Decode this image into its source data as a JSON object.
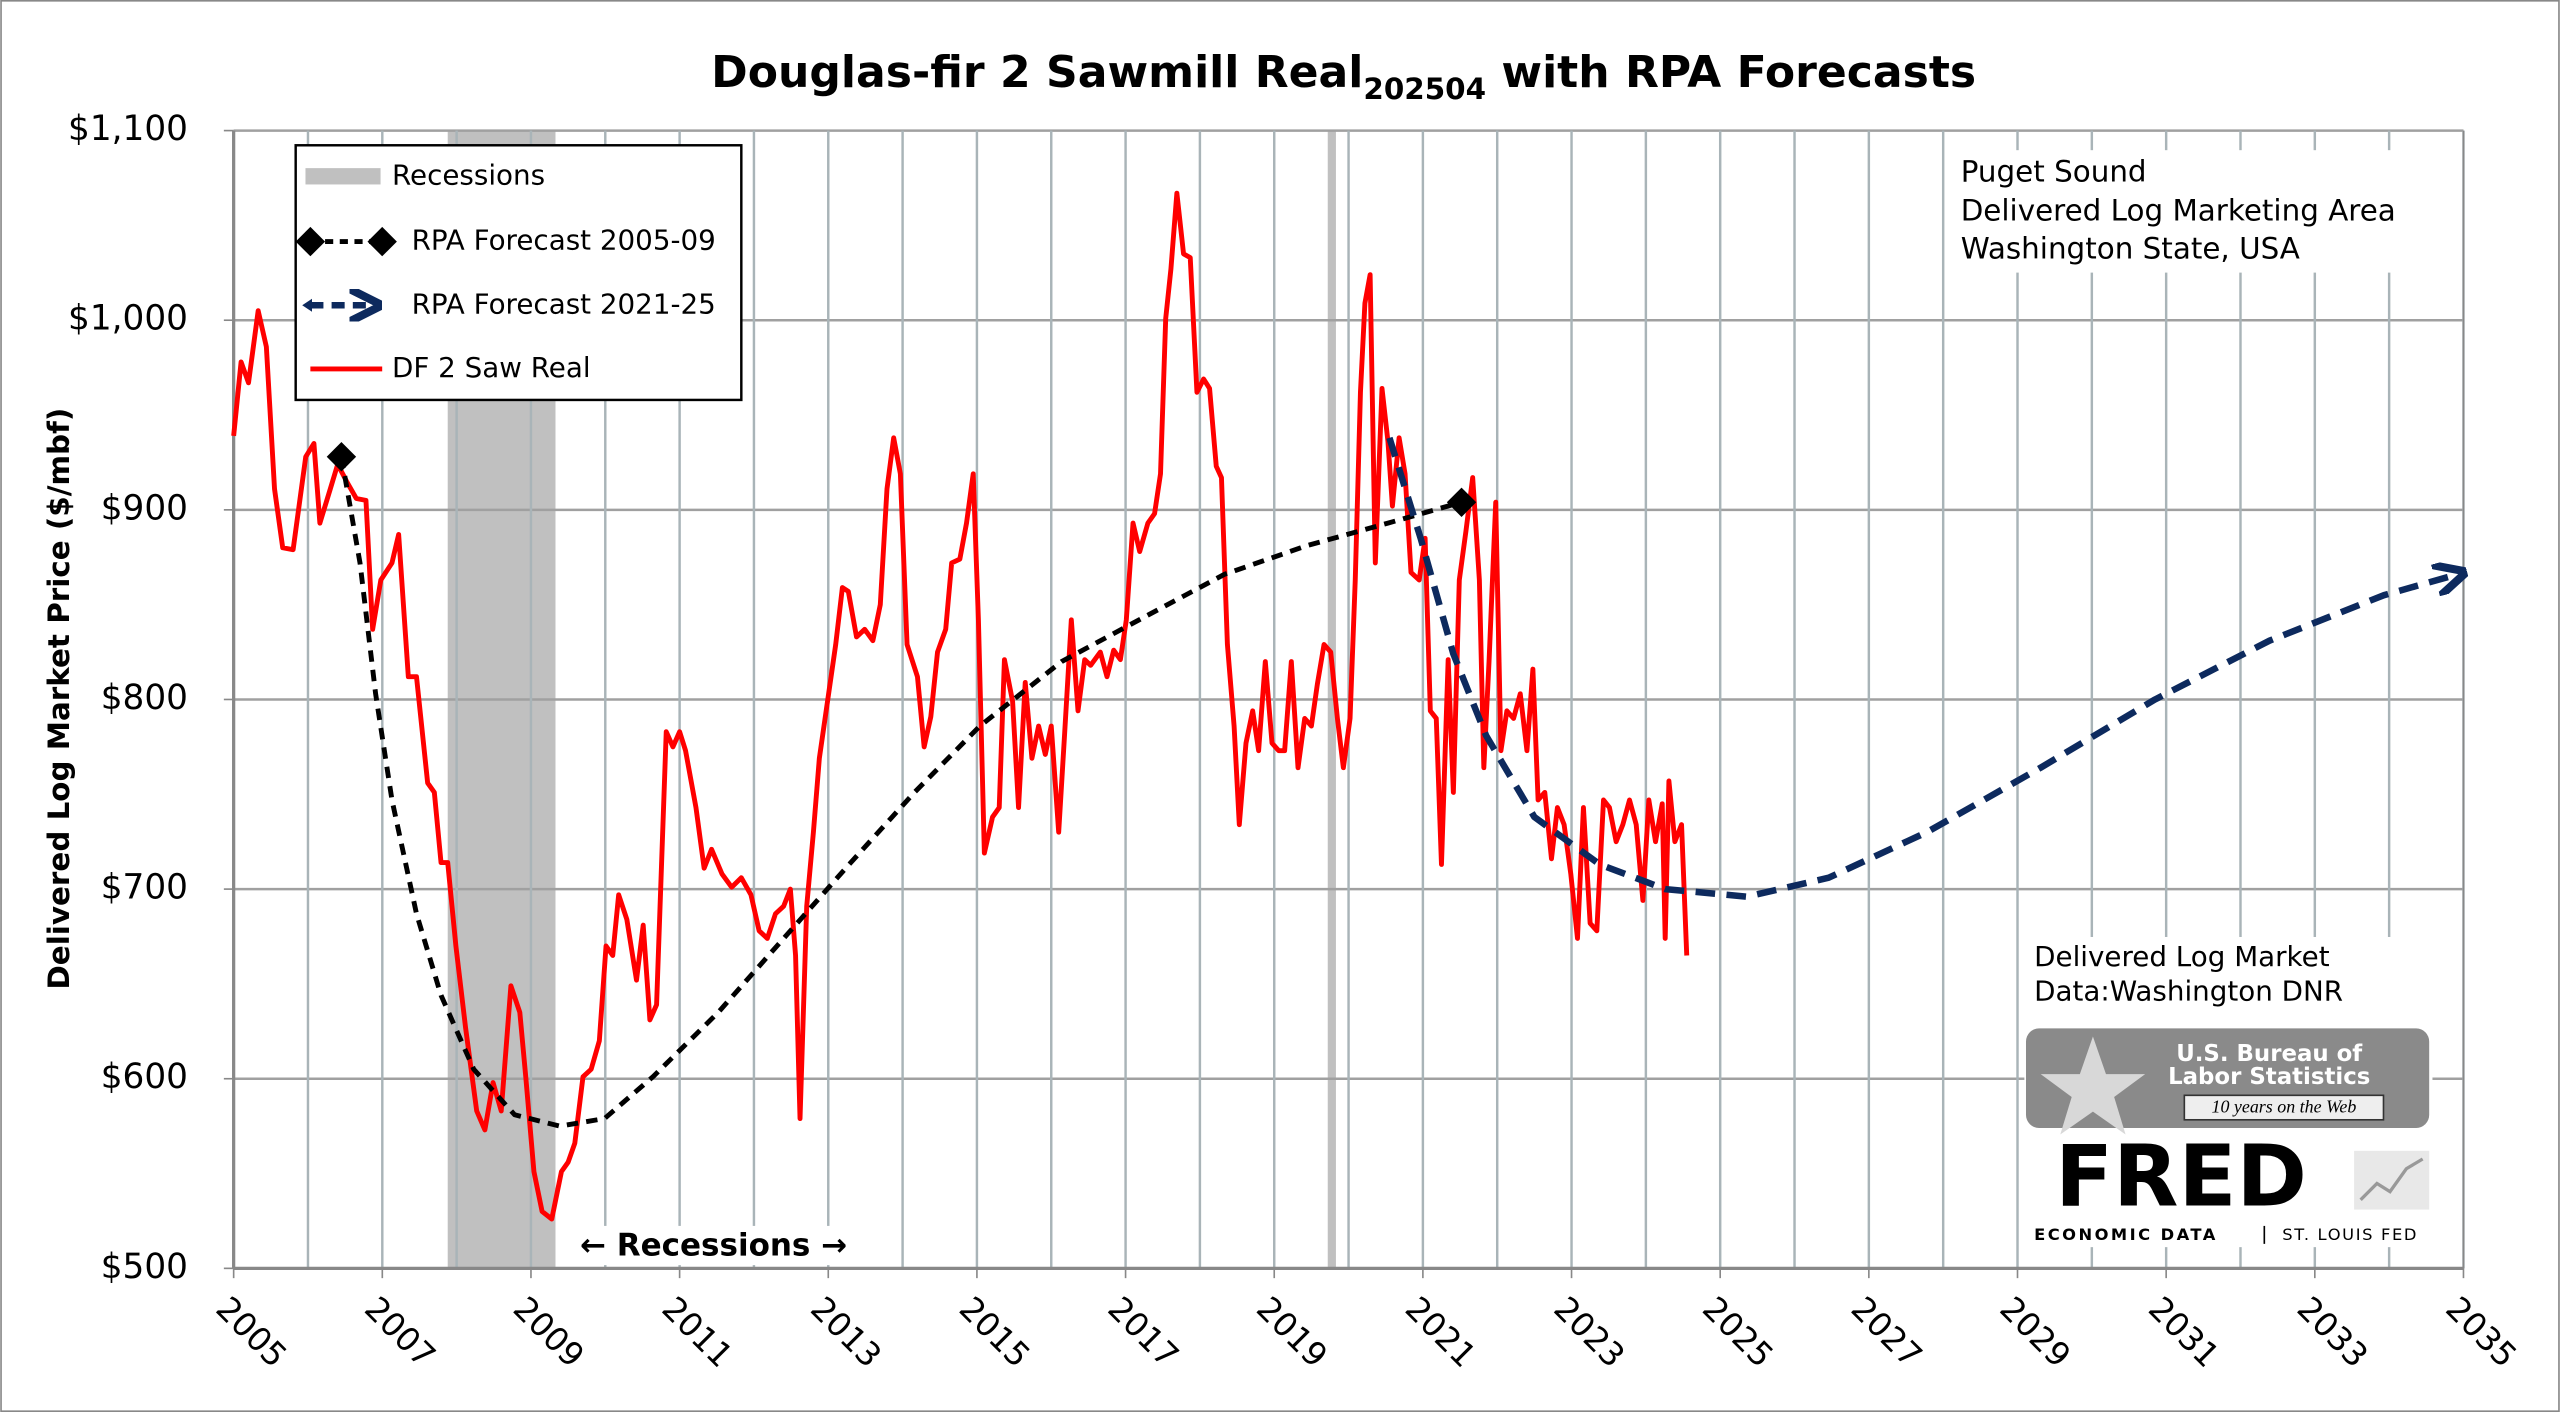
{
  "chart_data": {
    "type": "line",
    "title": "Douglas-fir 2 Sawmill Real",
    "title_subscript": "202504",
    "title_suffix": " with RPA Forecasts",
    "y_label": "Delivered Log Market Price ($/mbf)",
    "xlim": [
      2005,
      2035
    ],
    "xticks": [
      2005,
      2007,
      2009,
      2011,
      2013,
      2015,
      2017,
      2019,
      2021,
      2023,
      2025,
      2027,
      2029,
      2031,
      2033,
      2035
    ],
    "minor_grid": true,
    "ylim": [
      500,
      1100
    ],
    "yticks": [
      {
        "value": 500,
        "label": "$500"
      },
      {
        "value": 600,
        "label": "$600"
      },
      {
        "value": 700,
        "label": "$700"
      },
      {
        "value": 800,
        "label": "$800"
      },
      {
        "value": 900,
        "label": "$900"
      },
      {
        "value": 1000,
        "label": "$1,000"
      },
      {
        "value": 1100,
        "label": "$1,100"
      }
    ],
    "grid": true,
    "legend": "upper left",
    "recessions": {
      "name": "Recessions",
      "color": "#c0c0c0",
      "ranges": [
        [
          2007.88,
          2009.33
        ],
        [
          2019.72,
          2019.83
        ]
      ]
    },
    "series": [
      {
        "name": "DF 2 Saw Real",
        "color": "#ff0000",
        "dash": false,
        "marker": "none",
        "x": [
          2005.0,
          2005.1,
          2005.2,
          2005.33,
          2005.44,
          2005.55,
          2005.66,
          2005.8,
          2005.97,
          2006.08,
          2006.16,
          2006.3,
          2006.4,
          2006.52,
          2006.65,
          2006.78,
          2006.87,
          2006.98,
          2007.13,
          2007.22,
          2007.35,
          2007.46,
          2007.61,
          2007.7,
          2007.79,
          2007.88,
          2007.99,
          2008.12,
          2008.27,
          2008.38,
          2008.49,
          2008.6,
          2008.73,
          2008.85,
          2008.93,
          2009.04,
          2009.15,
          2009.28,
          2009.41,
          2009.5,
          2009.59,
          2009.7,
          2009.81,
          2009.92,
          2010.01,
          2010.1,
          2010.18,
          2010.29,
          2010.42,
          2010.51,
          2010.6,
          2010.69,
          2010.82,
          2010.91,
          2011.0,
          2011.08,
          2011.22,
          2011.33,
          2011.43,
          2011.57,
          2011.7,
          2011.83,
          2011.96,
          2012.07,
          2012.18,
          2012.29,
          2012.4,
          2012.49,
          2012.56,
          2012.62,
          2012.71,
          2012.8,
          2012.88,
          2012.99,
          2013.1,
          2013.19,
          2013.27,
          2013.38,
          2013.49,
          2013.6,
          2013.7,
          2013.79,
          2013.88,
          2013.97,
          2014.06,
          2014.2,
          2014.29,
          2014.38,
          2014.47,
          2014.58,
          2014.66,
          2014.77,
          2014.86,
          2014.95,
          2015.02,
          2015.1,
          2015.21,
          2015.3,
          2015.37,
          2015.48,
          2015.56,
          2015.65,
          2015.74,
          2015.83,
          2015.92,
          2016.0,
          2016.1,
          2016.18,
          2016.27,
          2016.36,
          2016.45,
          2016.53,
          2016.66,
          2016.75,
          2016.84,
          2016.93,
          2017.01,
          2017.1,
          2017.19,
          2017.3,
          2017.39,
          2017.47,
          2017.54,
          2017.61,
          2017.69,
          2017.78,
          2017.87,
          2017.96,
          2018.05,
          2018.13,
          2018.22,
          2018.29,
          2018.37,
          2018.46,
          2018.53,
          2018.62,
          2018.71,
          2018.79,
          2018.88,
          2018.97,
          2019.06,
          2019.14,
          2019.23,
          2019.32,
          2019.41,
          2019.5,
          2019.58,
          2019.67,
          2019.76,
          2019.85,
          2019.93,
          2020.02,
          2020.09,
          2020.16,
          2020.22,
          2020.29,
          2020.36,
          2020.45,
          2020.53,
          2020.59,
          2020.68,
          2020.76,
          2020.84,
          2020.95,
          2021.03,
          2021.1,
          2021.18,
          2021.25,
          2021.34,
          2021.41,
          2021.49,
          2021.58,
          2021.67,
          2021.76,
          2021.82,
          2021.89,
          2021.98,
          2022.05,
          2022.13,
          2022.22,
          2022.31,
          2022.4,
          2022.48,
          2022.55,
          2022.64,
          2022.73,
          2022.81,
          2022.9,
          2022.99,
          2023.08,
          2023.16,
          2023.25,
          2023.34,
          2023.43,
          2023.51,
          2023.6,
          2023.69,
          2023.78,
          2023.87,
          2023.96,
          2024.04,
          2024.13,
          2024.22,
          2024.26,
          2024.31,
          2024.39,
          2024.48,
          2024.55
        ],
        "values": [
          939,
          978,
          967,
          1005,
          986,
          911,
          880,
          879,
          928,
          935,
          893,
          911,
          924,
          915,
          906,
          905,
          837,
          863,
          872,
          887,
          812,
          812,
          756,
          751,
          714,
          714,
          670,
          627,
          583,
          573,
          598,
          583,
          649,
          635,
          601,
          551,
          530,
          526,
          551,
          556,
          566,
          601,
          605,
          620,
          670,
          665,
          697,
          684,
          652,
          681,
          631,
          639,
          783,
          775,
          783,
          773,
          743,
          711,
          721,
          708,
          701,
          706,
          697,
          678,
          674,
          687,
          691,
          700,
          665,
          579,
          691,
          730,
          769,
          799,
          829,
          859,
          857,
          833,
          837,
          831,
          850,
          911,
          938,
          919,
          829,
          812,
          775,
          791,
          825,
          837,
          872,
          874,
          893,
          919,
          842,
          719,
          738,
          743,
          821,
          799,
          743,
          809,
          769,
          786,
          771,
          786,
          730,
          782,
          842,
          794,
          821,
          818,
          825,
          812,
          826,
          821,
          842,
          893,
          878,
          893,
          898,
          919,
          1001,
          1027,
          1067,
          1035,
          1033,
          962,
          969,
          964,
          923,
          917,
          829,
          786,
          734,
          777,
          794,
          773,
          820,
          777,
          773,
          773,
          820,
          764,
          790,
          786,
          808,
          829,
          825,
          790,
          764,
          790,
          863,
          962,
          1009,
          1024,
          872,
          964,
          936,
          902,
          938,
          919,
          867,
          863,
          885,
          794,
          790,
          713,
          821,
          751,
          863,
          889,
          917,
          863,
          764,
          820,
          904,
          773,
          794,
          790,
          803,
          773,
          816,
          747,
          751,
          716,
          743,
          734,
          708,
          674,
          743,
          682,
          678,
          747,
          743,
          725,
          734,
          747,
          734,
          694,
          747,
          725,
          745,
          674,
          757,
          725,
          734,
          665
        ]
      },
      {
        "name": "RPA Forecast 2005-09",
        "color": "#000000",
        "dash": true,
        "marker": "diamond",
        "x": [
          2006.45,
          2006.7,
          2006.91,
          2007.13,
          2007.46,
          2007.79,
          2008.23,
          2008.78,
          2009.39,
          2009.99,
          2010.64,
          2011.52,
          2012.4,
          2013.28,
          2014.16,
          2015.04,
          2016.14,
          2017.23,
          2018.33,
          2019.43,
          2020.53,
          2021.52
        ],
        "values": [
          928,
          872,
          803,
          747,
          687,
          644,
          605,
          581,
          575,
          579,
          601,
          635,
          674,
          713,
          751,
          786,
          820,
          843,
          866,
          881,
          893,
          904
        ]
      },
      {
        "name": "RPA Forecast 2021-25",
        "color": "#0d2a5e",
        "dash": true,
        "marker": "arrow",
        "x": [
          2020.55,
          2020.97,
          2021.41,
          2021.85,
          2022.5,
          2023.38,
          2024.26,
          2025.36,
          2026.46,
          2027.78,
          2029.31,
          2030.85,
          2032.39,
          2033.93,
          2034.92
        ],
        "values": [
          938,
          885,
          824,
          781,
          738,
          713,
          700,
          696,
          706,
          730,
          764,
          800,
          831,
          855,
          866
        ]
      }
    ],
    "annotations": {
      "region": [
        "Puget Sound",
        "Delivered Log Marketing Area",
        "Washington State, USA"
      ],
      "source": [
        "Delivered Log Market",
        "Data:Washington DNR"
      ],
      "recession_note": "← Recessions →"
    },
    "logos": {
      "bls": [
        "U.S. Bureau of",
        "Labor Statistics",
        "10 years on the Web"
      ],
      "fred": "FRED",
      "fred_sub": [
        "ECONOMIC DATA",
        "ST. LOUIS FED"
      ]
    }
  }
}
